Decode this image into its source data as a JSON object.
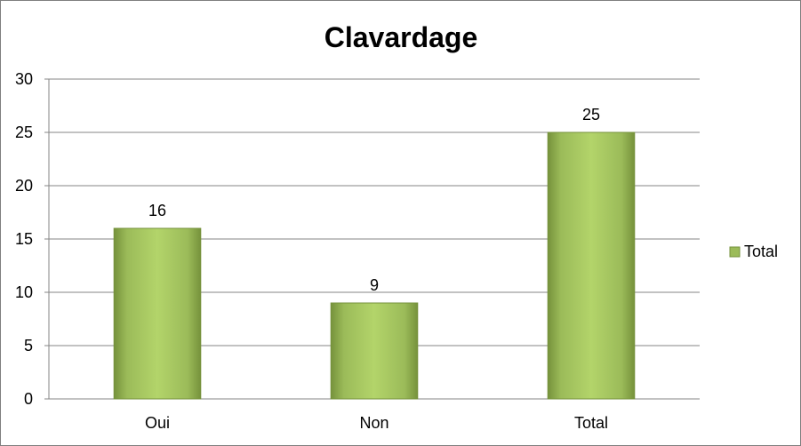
{
  "chart_data": {
    "type": "bar",
    "title": "Clavardage",
    "xlabel": "",
    "ylabel": "",
    "categories": [
      "Oui",
      "Non",
      "Total"
    ],
    "series": [
      {
        "name": "Total",
        "values": [
          16,
          9,
          25
        ],
        "color": "#9bbb59"
      }
    ],
    "ylim": [
      0,
      30
    ],
    "yticks": [
      "0",
      "5",
      "10",
      "15",
      "20",
      "25",
      "30"
    ],
    "data_labels": [
      "16",
      "9",
      "25"
    ],
    "grid": true,
    "legend": {
      "position": "right",
      "entries": [
        "Total"
      ]
    }
  }
}
